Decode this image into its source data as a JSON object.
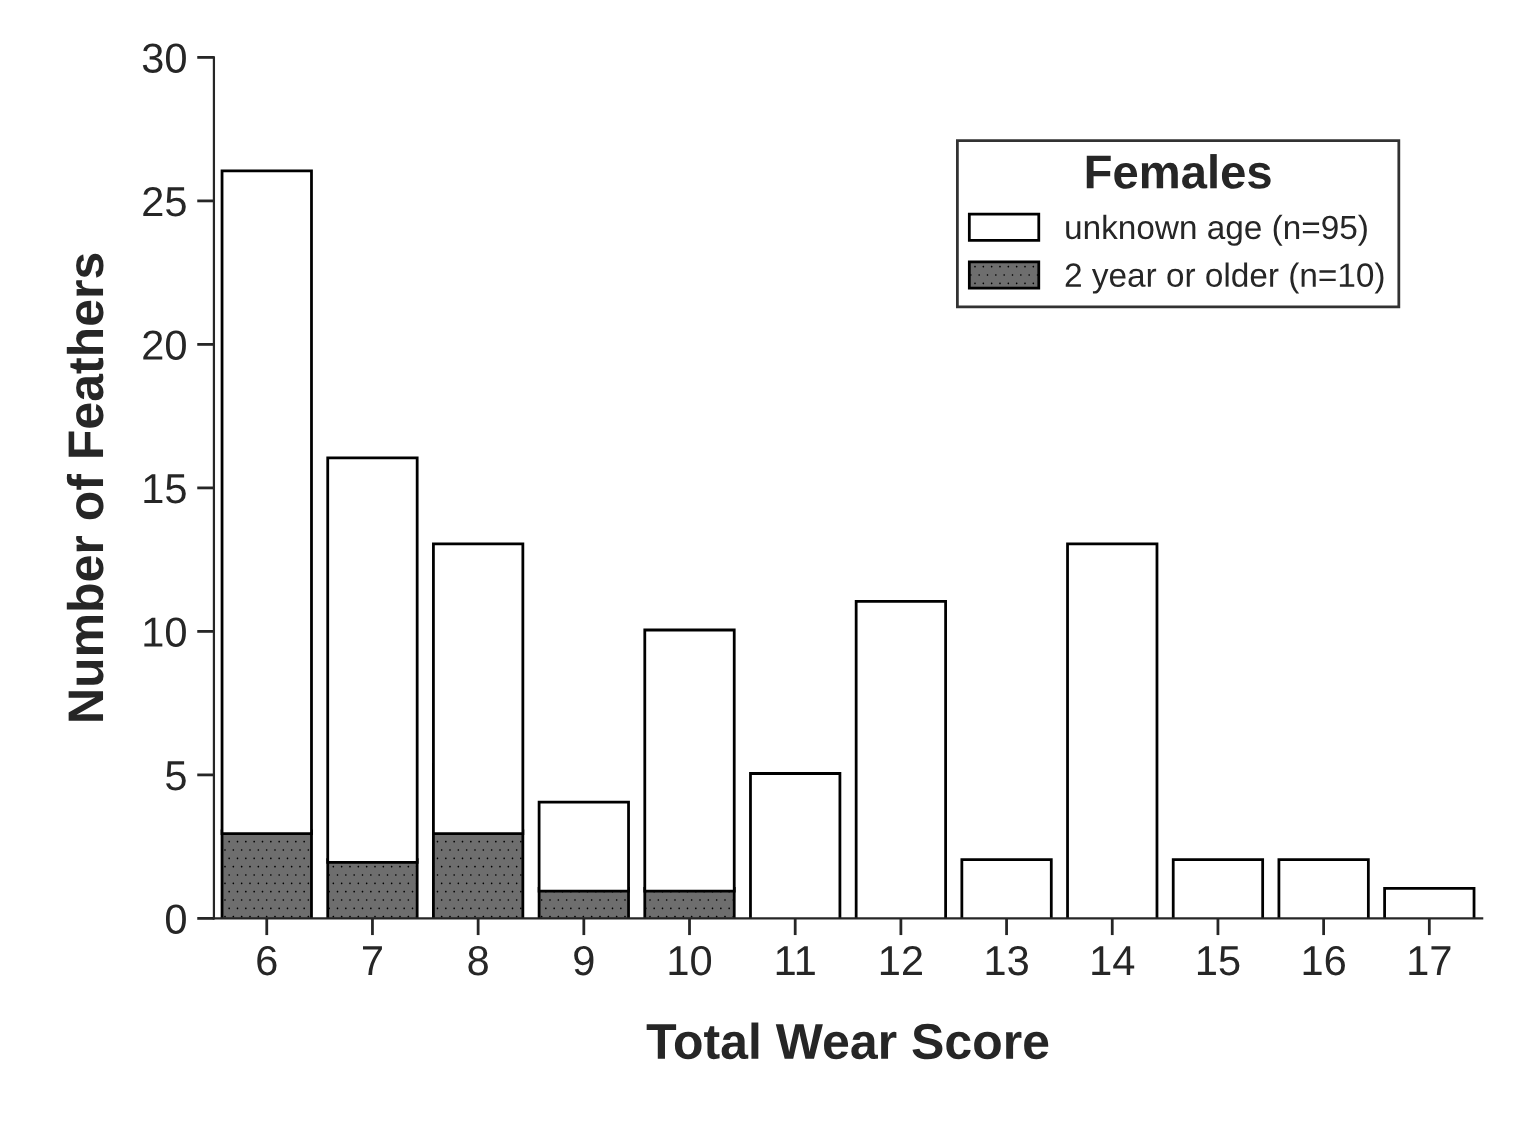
{
  "chart_data": {
    "type": "bar",
    "stacked": true,
    "xlabel": "Total Wear Score",
    "ylabel": "Number of Feathers",
    "legend_title": "Females",
    "legend": "top right",
    "grid": false,
    "categories": [
      "6",
      "7",
      "8",
      "9",
      "10",
      "11",
      "12",
      "13",
      "14",
      "15",
      "16",
      "17"
    ],
    "ylim": [
      0,
      30
    ],
    "yticks": [
      0,
      5,
      10,
      15,
      20,
      25,
      30
    ],
    "series": [
      {
        "name": "2 year or older (n=10)",
        "color": "#6e6e6e",
        "values": [
          3,
          2,
          3,
          1,
          1,
          0,
          0,
          0,
          0,
          0,
          0,
          0
        ]
      },
      {
        "name": "unknown age (n=95)",
        "color": "#ffffff",
        "values": [
          23,
          14,
          10,
          3,
          9,
          5,
          11,
          2,
          13,
          2,
          2,
          1
        ]
      }
    ]
  }
}
